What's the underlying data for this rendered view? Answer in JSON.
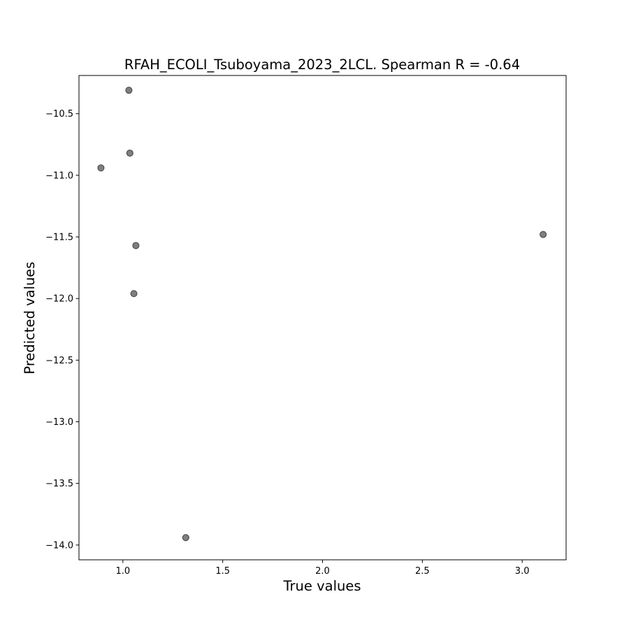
{
  "chart_data": {
    "type": "scatter",
    "title": "RFAH_ECOLI_Tsuboyama_2023_2LCL. Spearman R = -0.64",
    "xlabel": "True values",
    "ylabel": "Predicted values",
    "xlim": [
      0.78,
      3.22
    ],
    "ylim": [
      -14.12,
      -10.19
    ],
    "xticks": [
      1.0,
      1.5,
      2.0,
      2.5,
      3.0
    ],
    "xtick_labels": [
      "1.0",
      "1.5",
      "2.0",
      "2.5",
      "3.0"
    ],
    "yticks": [
      -10.5,
      -11.0,
      -11.5,
      -12.0,
      -12.5,
      -13.0,
      -13.5,
      -14.0
    ],
    "ytick_labels": [
      "−10.5",
      "−11.0",
      "−11.5",
      "−12.0",
      "−12.5",
      "−13.0",
      "−13.5",
      "−14.0"
    ],
    "grid": false,
    "series": [
      {
        "color": "#7f7f7f",
        "points": [
          {
            "x": 1.03,
            "y": -10.31
          },
          {
            "x": 1.035,
            "y": -10.82
          },
          {
            "x": 0.89,
            "y": -10.94
          },
          {
            "x": 1.065,
            "y": -11.57
          },
          {
            "x": 1.055,
            "y": -11.96
          },
          {
            "x": 3.105,
            "y": -11.48
          },
          {
            "x": 1.315,
            "y": -13.94
          }
        ]
      }
    ]
  }
}
